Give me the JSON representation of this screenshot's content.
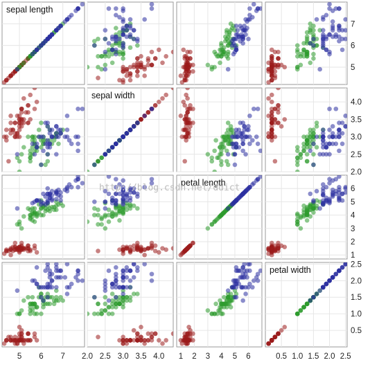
{
  "chart_data": {
    "type": "scatter",
    "layout": "scatterplot-matrix",
    "variables": [
      "sepal length",
      "sepal width",
      "petal length",
      "petal width"
    ],
    "colors": [
      "#9b1c1c",
      "#2e9a2e",
      "#2b2fa0"
    ],
    "grid": true,
    "axes": [
      {
        "range": [
          4.2,
          8.0
        ],
        "ticks": [
          5,
          6,
          7
        ],
        "tick_labels": [
          "5",
          "6",
          "7"
        ]
      },
      {
        "range": [
          2.0,
          4.4
        ],
        "ticks": [
          2.0,
          2.5,
          3.0,
          3.5,
          4.0
        ],
        "tick_labels": [
          "2.0",
          "2.5",
          "3.0",
          "3.5",
          "4.0"
        ]
      },
      {
        "range": [
          0.7,
          7.0
        ],
        "ticks": [
          1,
          2,
          3,
          4,
          5,
          6
        ],
        "tick_labels": [
          "1",
          "2",
          "3",
          "4",
          "5",
          "6"
        ]
      },
      {
        "range": [
          0.0,
          2.55
        ],
        "ticks": [
          0.5,
          1.0,
          1.5,
          2.0,
          2.5
        ],
        "tick_labels": [
          "0.5",
          "1.0",
          "1.5",
          "2.0",
          "2.5"
        ]
      }
    ],
    "groups": [
      {
        "points": [
          [
            5.1,
            3.5,
            1.4,
            0.2
          ],
          [
            4.9,
            3.0,
            1.4,
            0.2
          ],
          [
            4.7,
            3.2,
            1.3,
            0.2
          ],
          [
            4.6,
            3.1,
            1.5,
            0.2
          ],
          [
            5.0,
            3.6,
            1.4,
            0.2
          ],
          [
            5.4,
            3.9,
            1.7,
            0.4
          ],
          [
            4.6,
            3.4,
            1.4,
            0.3
          ],
          [
            5.0,
            3.4,
            1.5,
            0.2
          ],
          [
            4.4,
            2.9,
            1.4,
            0.2
          ],
          [
            4.9,
            3.1,
            1.5,
            0.1
          ],
          [
            5.4,
            3.7,
            1.5,
            0.2
          ],
          [
            4.8,
            3.4,
            1.6,
            0.2
          ],
          [
            4.8,
            3.0,
            1.4,
            0.1
          ],
          [
            4.3,
            3.0,
            1.1,
            0.1
          ],
          [
            5.8,
            4.0,
            1.2,
            0.2
          ],
          [
            5.7,
            4.4,
            1.5,
            0.4
          ],
          [
            5.4,
            3.9,
            1.3,
            0.4
          ],
          [
            5.1,
            3.5,
            1.4,
            0.3
          ],
          [
            5.7,
            3.8,
            1.7,
            0.3
          ],
          [
            5.1,
            3.8,
            1.5,
            0.3
          ],
          [
            5.4,
            3.4,
            1.7,
            0.2
          ],
          [
            5.1,
            3.7,
            1.5,
            0.4
          ],
          [
            4.6,
            3.6,
            1.0,
            0.2
          ],
          [
            5.1,
            3.3,
            1.7,
            0.5
          ],
          [
            4.8,
            3.4,
            1.9,
            0.2
          ],
          [
            5.0,
            3.0,
            1.6,
            0.2
          ],
          [
            5.0,
            3.4,
            1.6,
            0.4
          ],
          [
            5.2,
            3.5,
            1.5,
            0.2
          ],
          [
            5.2,
            3.4,
            1.4,
            0.2
          ],
          [
            4.7,
            3.2,
            1.6,
            0.2
          ],
          [
            4.8,
            3.1,
            1.6,
            0.2
          ],
          [
            5.4,
            3.4,
            1.5,
            0.4
          ],
          [
            5.2,
            4.1,
            1.5,
            0.1
          ],
          [
            5.5,
            4.2,
            1.4,
            0.2
          ],
          [
            4.9,
            3.1,
            1.5,
            0.2
          ],
          [
            5.0,
            3.2,
            1.2,
            0.2
          ],
          [
            5.5,
            3.5,
            1.3,
            0.2
          ],
          [
            4.9,
            3.6,
            1.4,
            0.1
          ],
          [
            4.4,
            3.0,
            1.3,
            0.2
          ],
          [
            5.1,
            3.4,
            1.5,
            0.2
          ],
          [
            5.0,
            3.5,
            1.3,
            0.3
          ],
          [
            4.5,
            2.3,
            1.3,
            0.3
          ],
          [
            4.4,
            3.2,
            1.3,
            0.2
          ],
          [
            5.0,
            3.5,
            1.6,
            0.6
          ],
          [
            5.1,
            3.8,
            1.9,
            0.4
          ],
          [
            4.8,
            3.0,
            1.4,
            0.3
          ],
          [
            5.1,
            3.8,
            1.6,
            0.2
          ],
          [
            4.6,
            3.2,
            1.4,
            0.2
          ],
          [
            5.3,
            3.7,
            1.5,
            0.2
          ],
          [
            5.0,
            3.3,
            1.4,
            0.2
          ]
        ]
      },
      {
        "points": [
          [
            7.0,
            3.2,
            4.7,
            1.4
          ],
          [
            6.4,
            3.2,
            4.5,
            1.5
          ],
          [
            6.9,
            3.1,
            4.9,
            1.5
          ],
          [
            5.5,
            2.3,
            4.0,
            1.3
          ],
          [
            6.5,
            2.8,
            4.6,
            1.5
          ],
          [
            5.7,
            2.8,
            4.5,
            1.3
          ],
          [
            6.3,
            3.3,
            4.7,
            1.6
          ],
          [
            4.9,
            2.4,
            3.3,
            1.0
          ],
          [
            6.6,
            2.9,
            4.6,
            1.3
          ],
          [
            5.2,
            2.7,
            3.9,
            1.4
          ],
          [
            5.0,
            2.0,
            3.5,
            1.0
          ],
          [
            5.9,
            3.0,
            4.2,
            1.5
          ],
          [
            6.0,
            2.2,
            4.0,
            1.0
          ],
          [
            6.1,
            2.9,
            4.7,
            1.4
          ],
          [
            5.6,
            2.9,
            3.6,
            1.3
          ],
          [
            6.7,
            3.1,
            4.4,
            1.4
          ],
          [
            5.6,
            3.0,
            4.5,
            1.5
          ],
          [
            5.8,
            2.7,
            4.1,
            1.0
          ],
          [
            6.2,
            2.2,
            4.5,
            1.5
          ],
          [
            5.6,
            2.5,
            3.9,
            1.1
          ],
          [
            5.9,
            3.2,
            4.8,
            1.8
          ],
          [
            6.1,
            2.8,
            4.0,
            1.3
          ],
          [
            6.3,
            2.5,
            4.9,
            1.5
          ],
          [
            6.1,
            2.8,
            4.7,
            1.2
          ],
          [
            6.4,
            2.9,
            4.3,
            1.3
          ],
          [
            6.6,
            3.0,
            4.4,
            1.4
          ],
          [
            6.8,
            2.8,
            4.8,
            1.4
          ],
          [
            6.7,
            3.0,
            5.0,
            1.7
          ],
          [
            6.0,
            2.9,
            4.5,
            1.5
          ],
          [
            5.7,
            2.6,
            3.5,
            1.0
          ],
          [
            5.5,
            2.4,
            3.8,
            1.1
          ],
          [
            5.5,
            2.4,
            3.7,
            1.0
          ],
          [
            5.8,
            2.7,
            3.9,
            1.2
          ],
          [
            6.0,
            2.7,
            5.1,
            1.6
          ],
          [
            5.4,
            3.0,
            4.5,
            1.5
          ],
          [
            6.0,
            3.4,
            4.5,
            1.6
          ],
          [
            6.7,
            3.1,
            4.7,
            1.5
          ],
          [
            6.3,
            2.3,
            4.4,
            1.3
          ],
          [
            5.6,
            3.0,
            4.1,
            1.3
          ],
          [
            5.5,
            2.5,
            4.0,
            1.3
          ],
          [
            5.5,
            2.6,
            4.4,
            1.2
          ],
          [
            6.1,
            3.0,
            4.6,
            1.4
          ],
          [
            5.8,
            2.6,
            4.0,
            1.2
          ],
          [
            5.0,
            2.3,
            3.3,
            1.0
          ],
          [
            5.6,
            2.7,
            4.2,
            1.3
          ],
          [
            5.7,
            3.0,
            4.2,
            1.2
          ],
          [
            5.7,
            2.9,
            4.2,
            1.3
          ],
          [
            6.2,
            2.9,
            4.3,
            1.3
          ],
          [
            5.1,
            2.5,
            3.0,
            1.1
          ],
          [
            5.7,
            2.8,
            4.1,
            1.3
          ]
        ]
      },
      {
        "points": [
          [
            6.3,
            3.3,
            6.0,
            2.5
          ],
          [
            5.8,
            2.7,
            5.1,
            1.9
          ],
          [
            7.1,
            3.0,
            5.9,
            2.1
          ],
          [
            6.3,
            2.9,
            5.6,
            1.8
          ],
          [
            6.5,
            3.0,
            5.8,
            2.2
          ],
          [
            7.6,
            3.0,
            6.6,
            2.1
          ],
          [
            4.9,
            2.5,
            4.5,
            1.7
          ],
          [
            7.3,
            2.9,
            6.3,
            1.8
          ],
          [
            6.7,
            2.5,
            5.8,
            1.8
          ],
          [
            7.2,
            3.6,
            6.1,
            2.5
          ],
          [
            6.5,
            3.2,
            5.1,
            2.0
          ],
          [
            6.4,
            2.7,
            5.3,
            1.9
          ],
          [
            6.8,
            3.0,
            5.5,
            2.1
          ],
          [
            5.7,
            2.5,
            5.0,
            2.0
          ],
          [
            5.8,
            2.8,
            5.1,
            2.4
          ],
          [
            6.4,
            3.2,
            5.3,
            2.3
          ],
          [
            6.5,
            3.0,
            5.5,
            1.8
          ],
          [
            7.7,
            3.8,
            6.7,
            2.2
          ],
          [
            7.7,
            2.6,
            6.9,
            2.3
          ],
          [
            6.0,
            2.2,
            5.0,
            1.5
          ],
          [
            6.9,
            3.2,
            5.7,
            2.3
          ],
          [
            5.6,
            2.8,
            4.9,
            2.0
          ],
          [
            7.7,
            2.8,
            6.7,
            2.0
          ],
          [
            6.3,
            2.7,
            4.9,
            1.8
          ],
          [
            6.7,
            3.3,
            5.7,
            2.1
          ],
          [
            7.2,
            3.2,
            6.0,
            1.8
          ],
          [
            6.2,
            2.8,
            4.8,
            1.8
          ],
          [
            6.1,
            3.0,
            4.9,
            1.8
          ],
          [
            6.4,
            2.8,
            5.6,
            2.1
          ],
          [
            7.2,
            3.0,
            5.8,
            1.6
          ],
          [
            7.4,
            2.8,
            6.1,
            1.9
          ],
          [
            7.9,
            3.8,
            6.4,
            2.0
          ],
          [
            6.4,
            2.8,
            5.6,
            2.2
          ],
          [
            6.3,
            2.8,
            5.1,
            1.5
          ],
          [
            6.1,
            2.6,
            5.6,
            1.4
          ],
          [
            7.7,
            3.0,
            6.1,
            2.3
          ],
          [
            6.3,
            3.4,
            5.6,
            2.4
          ],
          [
            6.4,
            3.1,
            5.5,
            1.8
          ],
          [
            6.0,
            3.0,
            4.8,
            1.8
          ],
          [
            6.9,
            3.1,
            5.4,
            2.1
          ],
          [
            6.7,
            3.1,
            5.6,
            2.4
          ],
          [
            6.9,
            3.1,
            5.1,
            2.3
          ],
          [
            5.8,
            2.7,
            5.1,
            1.9
          ],
          [
            6.8,
            3.2,
            5.9,
            2.3
          ],
          [
            6.7,
            3.3,
            5.7,
            2.5
          ],
          [
            6.7,
            3.0,
            5.2,
            2.3
          ],
          [
            6.3,
            2.5,
            5.0,
            1.9
          ],
          [
            6.5,
            3.0,
            5.2,
            2.0
          ],
          [
            6.2,
            3.4,
            5.4,
            2.3
          ],
          [
            5.9,
            3.0,
            5.1,
            1.8
          ]
        ]
      }
    ]
  },
  "watermark": "http://blog.csdn.net/ddict"
}
